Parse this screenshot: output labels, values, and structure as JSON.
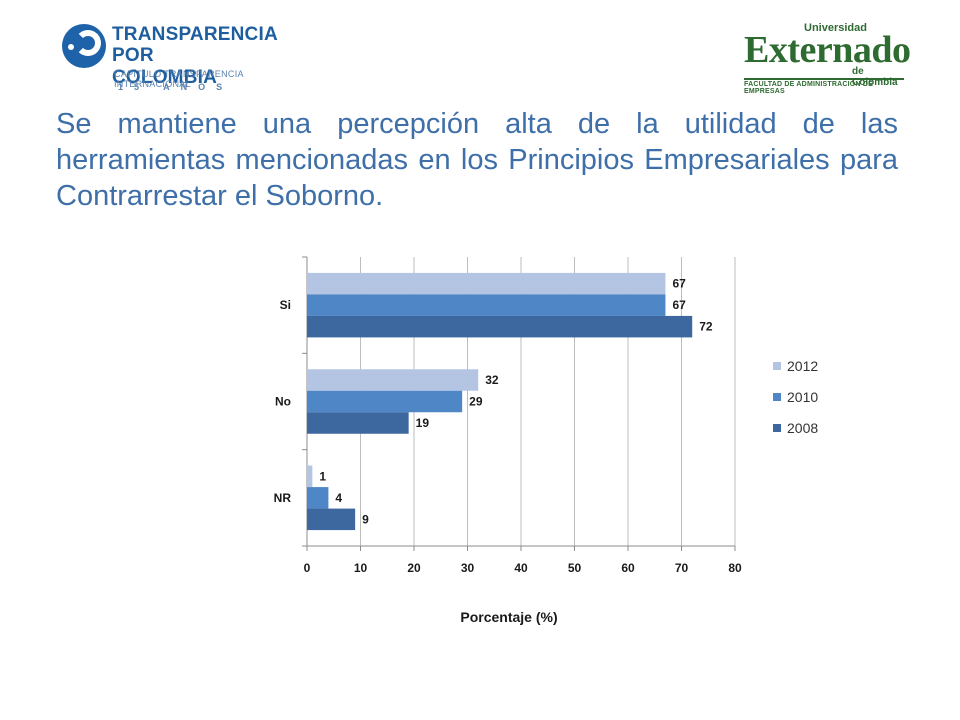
{
  "logos": {
    "left": {
      "line1": "TRANSPARENCIA",
      "line2": "POR COLOMBIA",
      "line3": "CAPÍTULO TRANSPARENCIA INTERNACIONAL",
      "line4": "15 AÑOS",
      "color": "#1e5e9e"
    },
    "right": {
      "universidad": "Universidad",
      "name": "Externado",
      "de": "de Colombia",
      "faculty": "FACULTAD DE ADMINISTRACIÓN DE EMPRESAS",
      "color": "#2e6b31"
    }
  },
  "slide": {
    "title": "Se mantiene una percepción alta de la utilidad de las herramientas mencionadas en los Principios Empresariales para Contrarrestar el Soborno.",
    "title_color": "#3e6fa9"
  },
  "chart_data": {
    "type": "bar",
    "orientation": "horizontal",
    "categories": [
      "Si",
      "No",
      "NR"
    ],
    "series": [
      {
        "name": "2012",
        "values": [
          67,
          32,
          1
        ],
        "color": "#b4c5e4"
      },
      {
        "name": "2010",
        "values": [
          67,
          29,
          4
        ],
        "color": "#4f86c6"
      },
      {
        "name": "2008",
        "values": [
          72,
          19,
          9
        ],
        "color": "#3c679f"
      }
    ],
    "xlabel": "Porcentaje (%)",
    "ylabel": "",
    "xlim": [
      0,
      80
    ],
    "xticks": [
      0,
      10,
      20,
      30,
      40,
      50,
      60,
      70,
      80
    ],
    "grid": true,
    "legend": "right",
    "data_labels": true
  }
}
